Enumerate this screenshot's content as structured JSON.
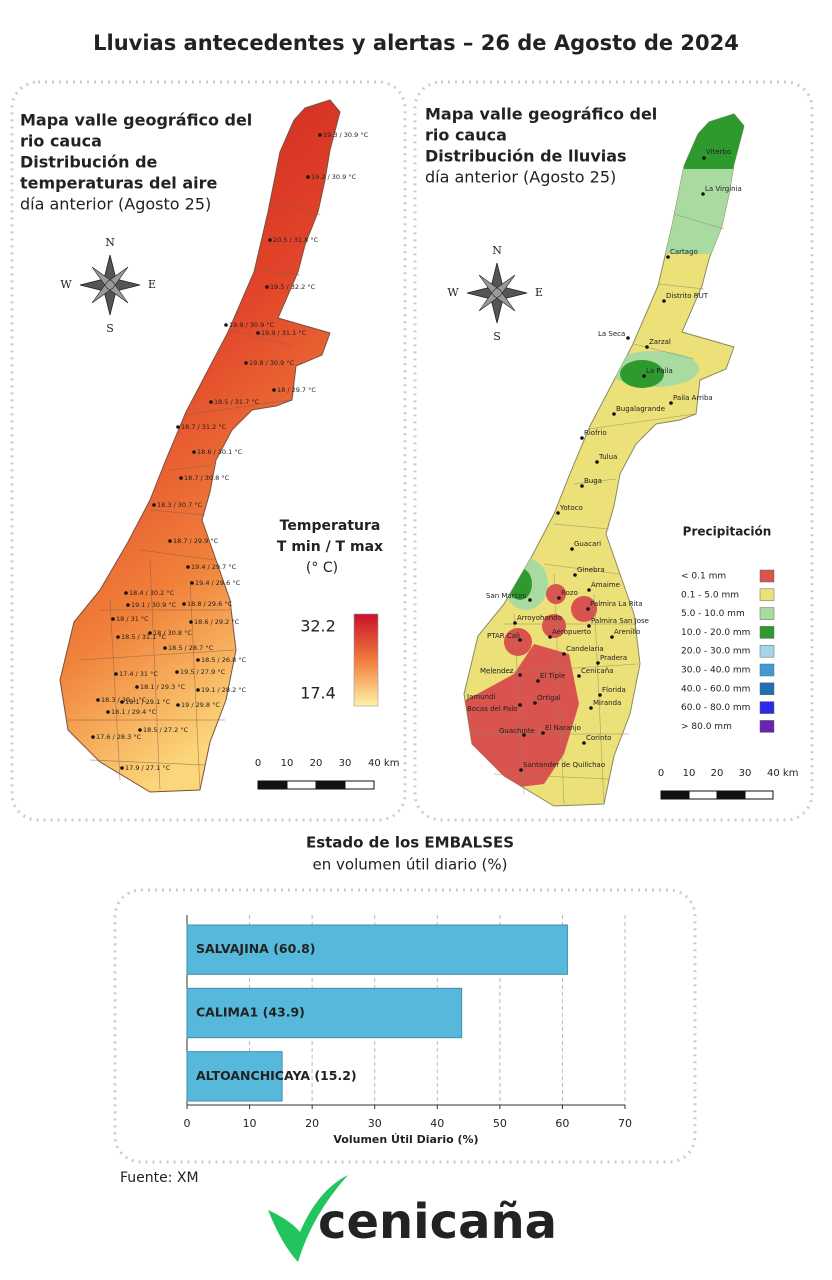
{
  "title": "Lluvias antecedentes y alertas – 26 de Agosto de 2024",
  "temperature_map": {
    "heading": [
      "Mapa valle geográfico del",
      "rio cauca",
      "Distribución de",
      "temperaturas del aire",
      "día anterior (Agosto 25)"
    ],
    "compass": {
      "n": "N",
      "s": "S",
      "e": "E",
      "w": "W"
    },
    "stations": [
      "19.3 / 30.9 °C",
      "19.2 / 30.9 °C",
      "20.5 / 31.8 °C",
      "19.5 / 32.2 °C",
      "19.9 / 30.9 °C",
      "19.9 / 31.1 °C",
      "19.8 / 30.9 °C",
      "18 / 29.7 °C",
      "18.5 / 31.7 °C",
      "18.7 / 31.2 °C",
      "18.6 / 30.1 °C",
      "18.7 / 30.8 °C",
      "18.3 / 30.7 °C",
      "18.7 / 29.9 °C",
      "19.4 / 29.7 °C",
      "19.4 / 29.6 °C",
      "18.4 / 30.2 °C",
      "19.1 / 30.9 °C",
      "18.8 / 29.6 °C",
      "18 / 31 °C",
      "18.6 / 29.2 °C",
      "18 / 30.8 °C",
      "18.5 / 31.1 °C",
      "18.5 / 28.7 °C",
      "18.5 / 26.8 °C",
      "19.5 / 27.9 °C",
      "17.4 / 31 °C",
      "18.1 / 29.3 °C",
      "19.1 / 28.2 °C",
      "18.3 / 30.1 °C",
      "19.1 / 29.1 °C",
      "19 / 29.8 °C",
      "18.1 / 29.4 °C",
      "17.6 / 28.3 °C",
      "18.5 / 27.2 °C",
      "17.9 / 27.1 °C"
    ],
    "legend": {
      "title": [
        "Temperatura",
        "T min / T max",
        "(° C)"
      ],
      "max": 32.2,
      "min": 17.4
    },
    "scale": [
      "0",
      "10",
      "20",
      "30",
      "40 km"
    ]
  },
  "rain_map": {
    "heading": [
      "Mapa valle geográfico del",
      "rio cauca",
      "Distribución de lluvias",
      "día anterior (Agosto 25)"
    ],
    "compass": {
      "n": "N",
      "s": "S",
      "e": "E",
      "w": "W"
    },
    "towns": [
      "Viterbo",
      "La Virginia",
      "Cartago",
      "Distrito RUT",
      "La Seca",
      "Zarzal",
      "La Paila",
      "Paila Arriba",
      "Bugalagrande",
      "Riofrio",
      "Tulua",
      "Buga",
      "Yotoco",
      "Guacari",
      "Ginebra",
      "Amaime",
      "San Marcos",
      "Rozo",
      "Palmira La Rita",
      "Arroyohondo",
      "Palmira San Jose",
      "PTAR Cali",
      "Aeropuerto",
      "Arenillo",
      "Candelaria",
      "Pradera",
      "Melendez",
      "Cenicaña",
      "El Tiple",
      "Florida",
      "Ortigal",
      "Jamundi",
      "Bocas del Palo",
      "Miranda",
      "El Naranjo",
      "Guachinte",
      "Corinto",
      "Santander de Quilichao"
    ],
    "legend": {
      "title": "Precipitación",
      "items": [
        {
          "label": "< 0.1 mm",
          "color": "#d9534f"
        },
        {
          "label": "0.1 - 5.0 mm",
          "color": "#ece079"
        },
        {
          "label": "5.0 - 10.0 mm",
          "color": "#a9dba0"
        },
        {
          "label": "10.0 - 20.0 mm",
          "color": "#2e9a2e"
        },
        {
          "label": "20.0 - 30.0 mm",
          "color": "#a8d4ea"
        },
        {
          "label": "30.0 - 40.0 mm",
          "color": "#3f9ad6"
        },
        {
          "label": "40.0 - 60.0 mm",
          "color": "#1f6fb0"
        },
        {
          "label": "60.0 - 80.0 mm",
          "color": "#2a2ae8"
        },
        {
          "label": "> 80.0 mm",
          "color": "#6a22b0"
        }
      ]
    },
    "scale": [
      "0",
      "10",
      "20",
      "30",
      "40 km"
    ]
  },
  "reservoirs_heading": [
    "Estado de los EMBALSES",
    "en volumen útil diario (%)"
  ],
  "chart_data": {
    "type": "bar",
    "orientation": "horizontal",
    "categories": [
      "SALVAJINA (60.8)",
      "CALIMA1 (43.9)",
      "ALTOANCHICAYA (15.2)"
    ],
    "values": [
      60.8,
      43.9,
      15.2
    ],
    "color": "#56b9db",
    "xlabel": "Volumen Útil Diario (%)",
    "xlim": [
      0,
      70
    ],
    "xticks": [
      0,
      10,
      20,
      30,
      40,
      50,
      60,
      70
    ],
    "grid": true
  },
  "source": "Fuente: XM",
  "logo": "cenicaña"
}
